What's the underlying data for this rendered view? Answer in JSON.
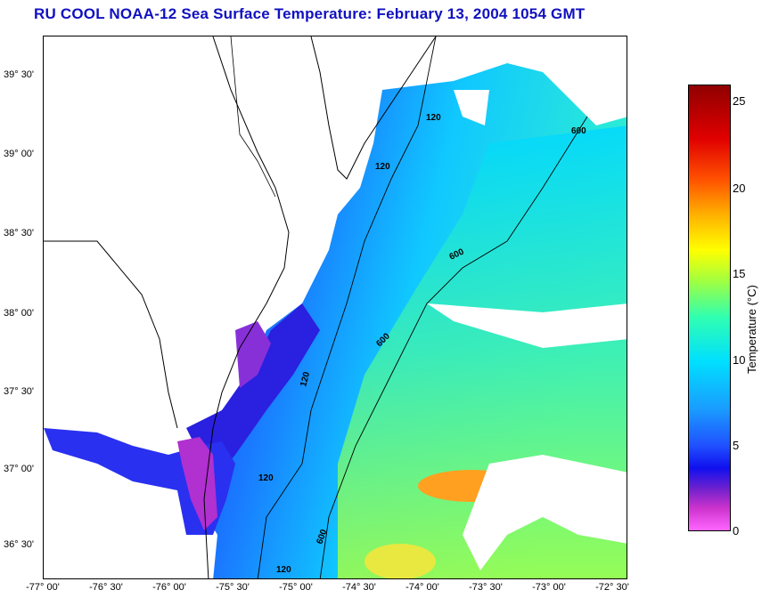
{
  "title": "RU COOL  NOAA-12  Sea Surface Temperature:  February 13, 2004 1054 GMT",
  "map": {
    "lat_ticks": [
      "39° 30'",
      "39° 00'",
      "38° 30'",
      "38° 00'",
      "37° 30'",
      "37° 00'",
      "36° 30'"
    ],
    "lon_ticks": [
      "-77° 00'",
      "-76° 30'",
      "-76° 00'",
      "-75° 30'",
      "-75° 00'",
      "-74° 30'",
      "-74° 00'",
      "-73° 30'",
      "-73° 00'",
      "-72° 30'"
    ],
    "isobath_labels": [
      "120",
      "120",
      "120",
      "120",
      "600",
      "600",
      "600",
      "600",
      "120"
    ]
  },
  "colorbar": {
    "label": "Temperature (°C)",
    "ticks": [
      "25",
      "20",
      "15",
      "10",
      "5",
      "0"
    ],
    "range": [
      0,
      26
    ]
  }
}
